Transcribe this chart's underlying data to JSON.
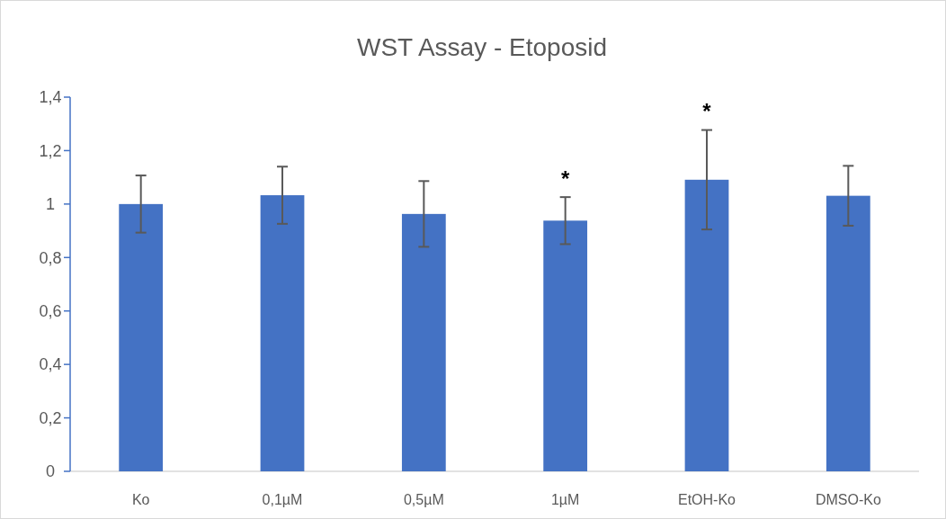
{
  "chart_data": {
    "type": "bar",
    "title": "WST Assay - Etoposid",
    "categories": [
      "Ko",
      "0,1µM",
      "0,5µM",
      "1µM",
      "EtOH-Ko",
      "DMSO-Ko"
    ],
    "values": [
      1.0,
      1.033,
      0.963,
      0.938,
      1.091,
      1.031
    ],
    "errors": [
      0.107,
      0.107,
      0.123,
      0.088,
      0.186,
      0.112
    ],
    "color": "#4472c4",
    "ylim": [
      0,
      1.4
    ],
    "yticks": [
      {
        "value": 0,
        "label": "0"
      },
      {
        "value": 0.2,
        "label": "0,2"
      },
      {
        "value": 0.4,
        "label": "0,4"
      },
      {
        "value": 0.6,
        "label": "0,6"
      },
      {
        "value": 0.8,
        "label": "0,8"
      },
      {
        "value": 1,
        "label": "1"
      },
      {
        "value": 1.2,
        "label": "1,2"
      },
      {
        "value": 1.4,
        "label": "1,4"
      }
    ],
    "annotations": [
      {
        "text": "*",
        "x": "1µM",
        "y": 1.026
      },
      {
        "text": "*",
        "x": "EtOH-Ko",
        "y": 1.278
      }
    ],
    "grid": false
  }
}
